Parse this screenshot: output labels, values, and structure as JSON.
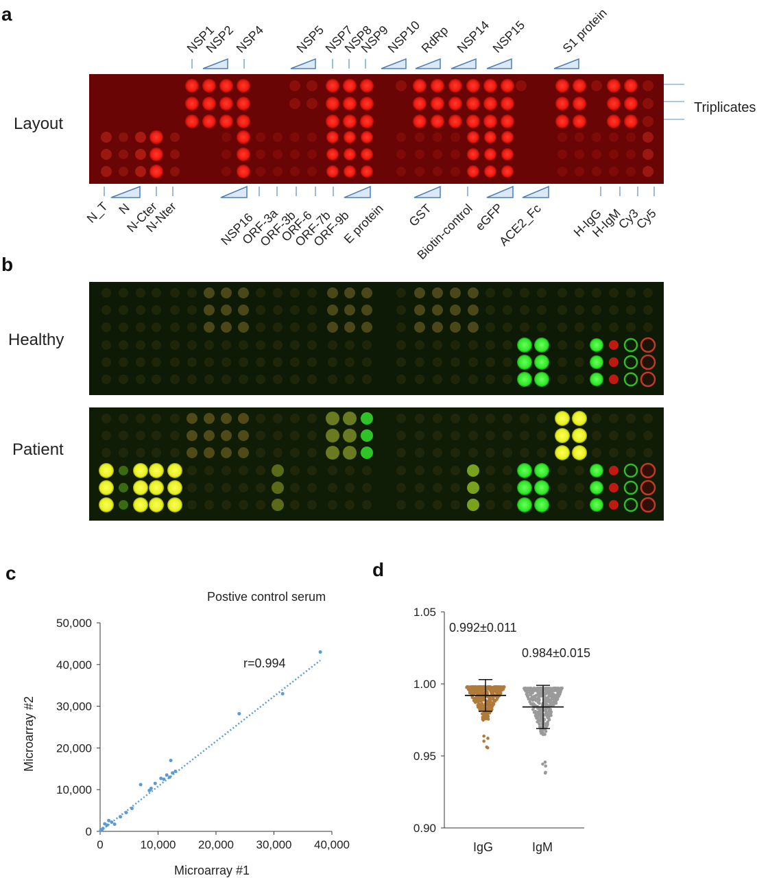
{
  "panels": {
    "a": "a",
    "b": "b",
    "c": "c",
    "d": "d"
  },
  "panel_a": {
    "row_label": "Layout",
    "triplicates_label": "Triplicates",
    "top_labels": [
      "NSP1",
      "NSP2",
      "NSP4",
      "NSP5",
      "NSP7",
      "NSP8",
      "NSP9",
      "NSP10",
      "RdRp",
      "NSP14",
      "NSP15",
      "S1 protein"
    ],
    "bottom_labels": [
      "N_T",
      "N",
      "N-Cter",
      "N-Nter",
      "NSP16",
      "ORF-3a",
      "ORF-3b",
      "ORF-6",
      "ORF-7b",
      "ORF-9b",
      "E protein",
      "GST",
      "Biotin-control",
      "eGFP",
      "ACE2_Fc",
      "H-IgG",
      "H-IgM",
      "Cy3",
      "Cy5"
    ]
  },
  "panel_b": {
    "healthy_label": "Healthy",
    "patient_label": "Patient"
  },
  "chart_data": [
    {
      "type": "scatter",
      "panel": "c",
      "title": "Postive control serum",
      "xlabel": "Microarray #1",
      "ylabel": "Microarray #2",
      "xlim": [
        0,
        40000
      ],
      "ylim": [
        0,
        50000
      ],
      "x_ticks": [
        "0",
        "10,000",
        "20,000",
        "30,000",
        "40,000"
      ],
      "y_ticks": [
        "0",
        "10,000",
        "20,000",
        "30,000",
        "40,000",
        "50,000"
      ],
      "annotation": "r=0.994",
      "point_color": "#5b9bd5",
      "trendline": [
        [
          0,
          0
        ],
        [
          38000,
          41000
        ]
      ],
      "points": [
        [
          100,
          200
        ],
        [
          300,
          400
        ],
        [
          500,
          700
        ],
        [
          800,
          1800
        ],
        [
          1200,
          1500
        ],
        [
          1500,
          2600
        ],
        [
          2000,
          2200
        ],
        [
          2500,
          1700
        ],
        [
          3500,
          3500
        ],
        [
          4500,
          4500
        ],
        [
          5500,
          5500
        ],
        [
          7000,
          11200
        ],
        [
          8500,
          9800
        ],
        [
          8800,
          10300
        ],
        [
          9500,
          11500
        ],
        [
          10500,
          12700
        ],
        [
          11000,
          12500
        ],
        [
          11500,
          13500
        ],
        [
          12000,
          13000
        ],
        [
          12200,
          17000
        ],
        [
          12500,
          14000
        ],
        [
          13000,
          14400
        ],
        [
          24000,
          28200
        ],
        [
          31500,
          33000
        ],
        [
          38000,
          43000
        ]
      ]
    },
    {
      "type": "scatter",
      "panel": "d",
      "categories": [
        "IgG",
        "IgM"
      ],
      "y_ticks": [
        "0.90",
        "0.95",
        "1.00",
        "1.05"
      ],
      "ylim": [
        0.9,
        1.05
      ],
      "annotations": [
        "0.992±0.011",
        "0.984±0.015"
      ],
      "series": [
        {
          "category": "IgG",
          "mean": 0.992,
          "sd": 0.011,
          "min": 0.955,
          "max": 0.998,
          "color": "#b07a3a"
        },
        {
          "category": "IgM",
          "mean": 0.984,
          "sd": 0.015,
          "min": 0.937,
          "max": 0.997,
          "color": "#9a9a9a"
        }
      ]
    }
  ]
}
